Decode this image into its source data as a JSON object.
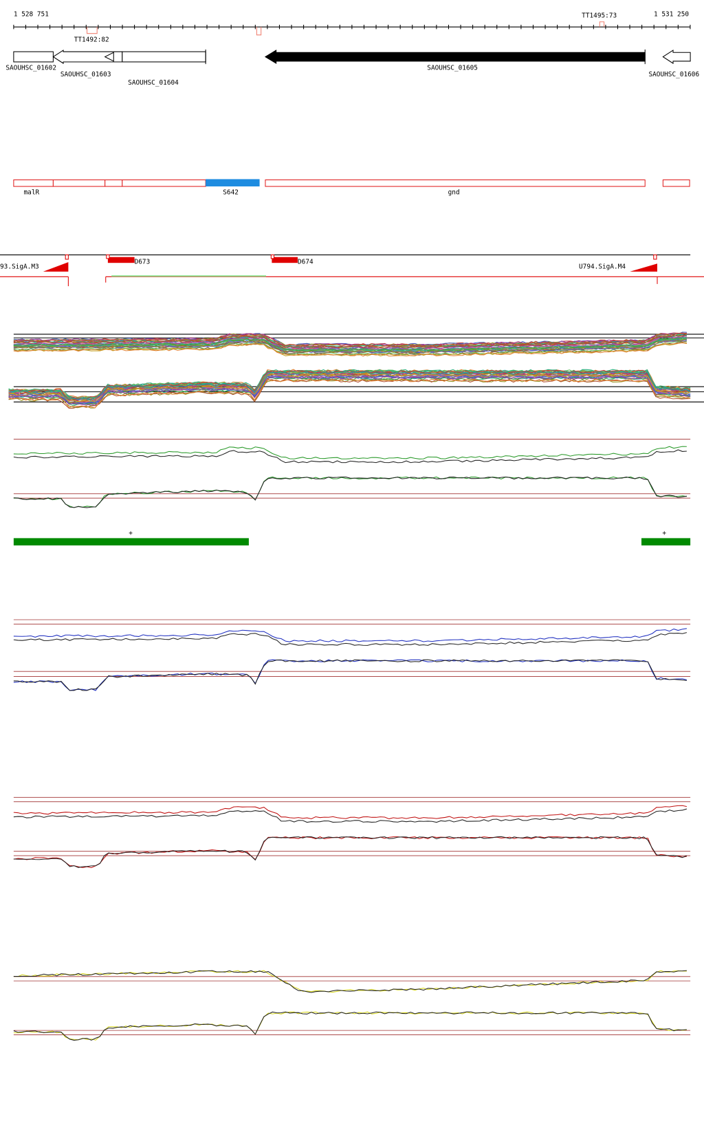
{
  "ruler": {
    "start": "1 528 751",
    "end": "1 531 250",
    "terminators": [
      "TT1492:82",
      "TT1495:73"
    ]
  },
  "genes": [
    "SAOUHSC_01602",
    "SAOUHSC_01603",
    "SAOUHSC_01604",
    "SAOUHSC_01605",
    "SAOUHSC_01606"
  ],
  "features": [
    "malR",
    "S642",
    "gnd"
  ],
  "promoters": [
    "93.SigA.M3",
    "D673",
    "D674",
    "U794.SigA.M4"
  ],
  "segments": [
    "+",
    "+"
  ]
}
